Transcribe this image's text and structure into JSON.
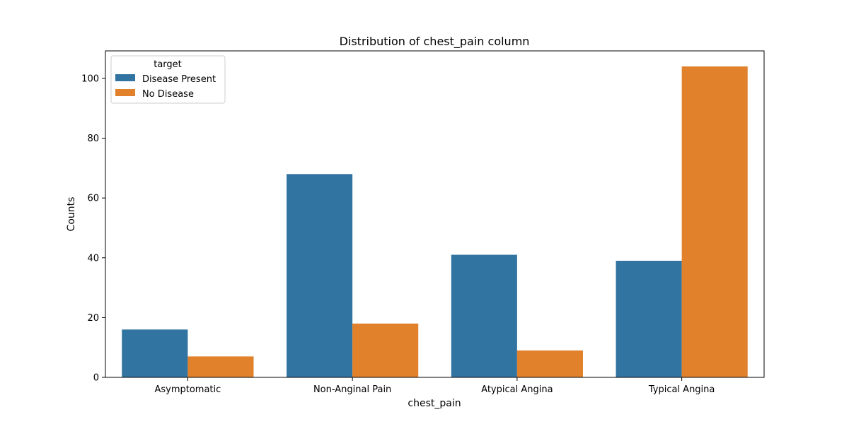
{
  "chart_data": {
    "type": "bar",
    "title": "Distribution of chest_pain column",
    "xlabel": "chest_pain",
    "ylabel": "Counts",
    "categories": [
      "Asymptomatic",
      "Non-Anginal Pain",
      "Atypical Angina",
      "Typical Angina"
    ],
    "series": [
      {
        "name": "Disease Present",
        "color": "#3274a1",
        "values": [
          16,
          68,
          41,
          39
        ]
      },
      {
        "name": "No Disease",
        "color": "#e1812c",
        "values": [
          7,
          18,
          9,
          104
        ]
      }
    ],
    "ylim": [
      0,
      109.2
    ],
    "yticks": [
      0,
      20,
      40,
      60,
      80,
      100
    ],
    "grid": false,
    "legend": {
      "title": "target",
      "position": "top-left"
    }
  }
}
